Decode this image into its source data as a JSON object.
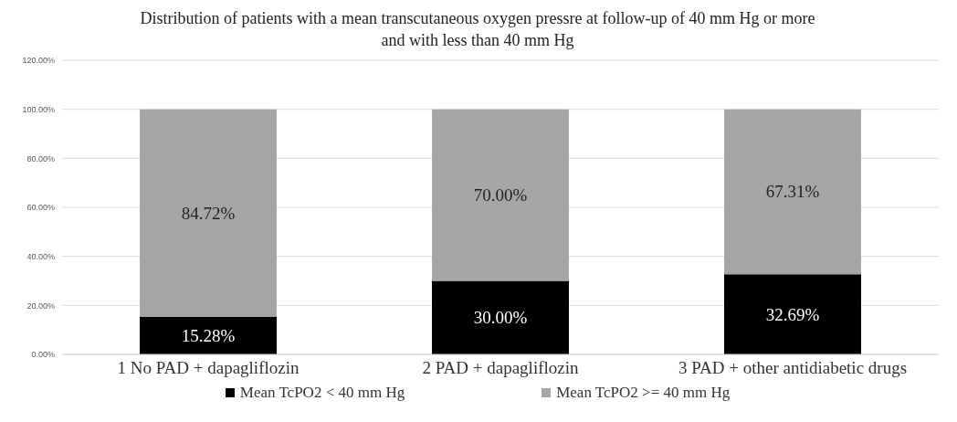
{
  "chart_data": {
    "type": "bar",
    "title": "Distribution of patients with a mean transcutaneous oxygen pressre at follow-up of 40 mm Hg or more and with less than 40 mm Hg",
    "categories": [
      "1 No PAD + dapagliflozin",
      "2 PAD + dapagliflozin",
      "3 PAD + other antidiabetic drugs"
    ],
    "stacked": true,
    "series": [
      {
        "name": "Mean TcPO2 < 40 mm Hg",
        "color": "#000000",
        "values": [
          15.28,
          30.0,
          32.69
        ],
        "value_labels": [
          "15.28%",
          "30.00%",
          "32.69%"
        ]
      },
      {
        "name": "Mean TcPO2 >= 40 mm Hg",
        "color": "#a6a6a6",
        "values": [
          84.72,
          70.0,
          67.31
        ],
        "value_labels": [
          "84.72%",
          "70.00%",
          "67.31%"
        ]
      }
    ],
    "ylim": [
      0,
      120
    ],
    "yticks": [
      {
        "value": 0,
        "label": "0.00%"
      },
      {
        "value": 20,
        "label": "20.00%"
      },
      {
        "value": 40,
        "label": "40.00%"
      },
      {
        "value": 60,
        "label": "60.00%"
      },
      {
        "value": 80,
        "label": "80.00%"
      },
      {
        "value": 100,
        "label": "100.00%"
      },
      {
        "value": 120,
        "label": "120.00%"
      }
    ],
    "grid": "y",
    "legend": "bottom"
  }
}
